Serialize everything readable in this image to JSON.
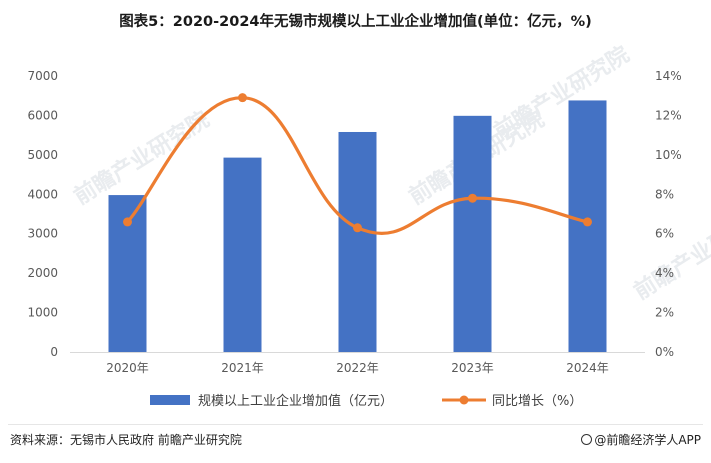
{
  "title": "图表5：2020-2024年无锡市规模以上工业企业增加值(单位：亿元，%)",
  "chart_data": {
    "type": "bar",
    "categories": [
      "2020年",
      "2021年",
      "2022年",
      "2023年",
      "2024年"
    ],
    "series": [
      {
        "name": "规模以上工业企业增加值（亿元）",
        "type": "bar",
        "axis": "left",
        "values": [
          3980,
          4930,
          5580,
          5990,
          6380
        ],
        "color": "#4472C4"
      },
      {
        "name": "同比增长（%）",
        "type": "line",
        "axis": "right",
        "values": [
          6.6,
          12.9,
          6.3,
          7.8,
          6.6
        ],
        "color": "#ED7D31"
      }
    ],
    "y_left": {
      "min": 0,
      "max": 7000,
      "ticks": [
        "0",
        "1000",
        "2000",
        "3000",
        "4000",
        "5000",
        "6000",
        "7000"
      ]
    },
    "y_right": {
      "min": 0,
      "max": 14,
      "ticks": [
        "0%",
        "2%",
        "4%",
        "6%",
        "8%",
        "10%",
        "12%",
        "14%"
      ]
    },
    "grid": false,
    "legend_position": "bottom"
  },
  "watermark_text": "前瞻产业研究院",
  "source_left": "资料来源：无锡市人民政府 前瞻产业研究院",
  "source_right": "@前瞻经济学人APP"
}
